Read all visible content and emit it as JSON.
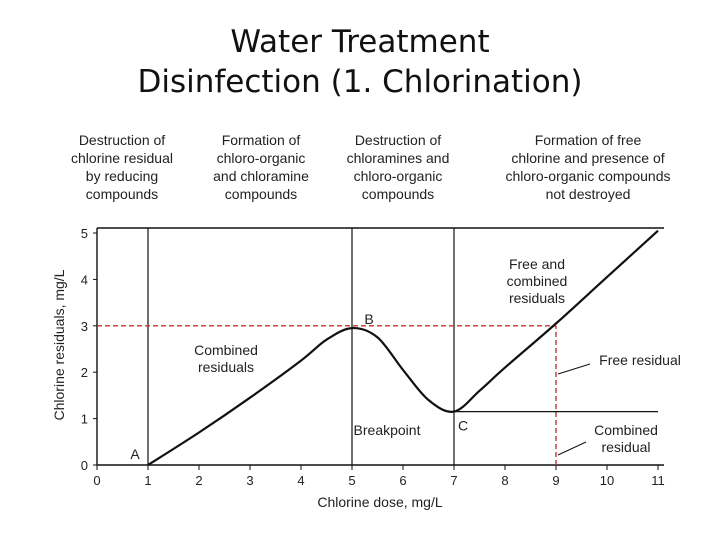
{
  "title": [
    "Water Treatment",
    "Disinfection (1. Chlorination)"
  ],
  "chart_data": {
    "type": "line",
    "xlabel": "Chlorine dose, mg/L",
    "ylabel": "Chlorine residuals, mg/L",
    "xlim": [
      0,
      11
    ],
    "ylim": [
      0,
      5
    ],
    "x_ticks": [
      "0",
      "1",
      "2",
      "3",
      "4",
      "5",
      "6",
      "7",
      "8",
      "9",
      "10",
      "11"
    ],
    "y_ticks": [
      "0",
      "1",
      "2",
      "3",
      "4",
      "5"
    ],
    "series": [
      {
        "x": [
          1,
          2,
          3,
          4,
          4.5,
          5,
          5.5,
          6,
          6.5,
          7,
          7.5,
          8,
          9,
          10,
          11
        ],
        "y": [
          0,
          0.7,
          1.45,
          2.25,
          2.7,
          2.95,
          2.75,
          2.05,
          1.4,
          1.15,
          1.6,
          2.1,
          3.05,
          4.05,
          5.05
        ]
      }
    ],
    "phase_boundaries": [
      1,
      5,
      7
    ],
    "phases": [
      {
        "lines": [
          "Destruction of",
          "chlorine residual",
          "by reducing",
          "compounds"
        ]
      },
      {
        "lines": [
          "Formation of",
          "chloro-organic",
          "and chloramine",
          "compounds"
        ]
      },
      {
        "lines": [
          "Destruction of",
          "chloramines and",
          "chloro-organic",
          "compounds"
        ]
      },
      {
        "lines": [
          "Formation of free",
          "chlorine and presence of",
          "chloro-organic compounds",
          "not destroyed"
        ]
      }
    ],
    "points": [
      {
        "label": "A",
        "x": 1,
        "y": 0
      },
      {
        "label": "B",
        "x": 5,
        "y": 2.95
      },
      {
        "label": "C",
        "x": 7,
        "y": 1.15
      }
    ],
    "reference_lines": [
      {
        "kind": "dashed-horizontal",
        "y": 3,
        "x_from": 0,
        "x_to": 9,
        "color": "#c0392b"
      },
      {
        "kind": "dashed-vertical",
        "x": 9,
        "y_from": 0,
        "y_to": 3,
        "color": "#c0392b"
      },
      {
        "kind": "solid-horizontal",
        "y": 1.15,
        "x_from": 7,
        "x_to": 11
      }
    ],
    "annotations": [
      {
        "lines": [
          "Combined",
          "residuals"
        ]
      },
      {
        "lines": [
          "Breakpoint"
        ]
      },
      {
        "lines": [
          "Free and",
          "combined",
          "residuals"
        ]
      },
      {
        "lines": [
          "Free residual"
        ]
      },
      {
        "lines": [
          "Combined",
          "residual"
        ]
      }
    ]
  }
}
